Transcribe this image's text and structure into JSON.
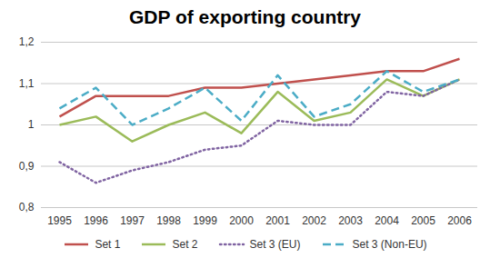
{
  "chart_data": {
    "type": "line",
    "title": "GDP of exporting country",
    "categories": [
      "1995",
      "1996",
      "1997",
      "1998",
      "1999",
      "2000",
      "2001",
      "2002",
      "2003",
      "2004",
      "2005",
      "2006"
    ],
    "series": [
      {
        "name": "Set 1",
        "color": "#C0504D",
        "line_style": "solid",
        "values": [
          1.02,
          1.07,
          1.07,
          1.07,
          1.09,
          1.09,
          1.1,
          1.11,
          1.12,
          1.13,
          1.13,
          1.16
        ]
      },
      {
        "name": "Set 2",
        "color": "#9BBB59",
        "line_style": "solid",
        "values": [
          1.0,
          1.02,
          0.96,
          1.0,
          1.03,
          0.98,
          1.08,
          1.01,
          1.03,
          1.11,
          1.07,
          1.11
        ]
      },
      {
        "name": "Set 3 (EU)",
        "color": "#8064A2",
        "line_style": "dotted",
        "values": [
          0.91,
          0.86,
          0.89,
          0.91,
          0.94,
          0.95,
          1.01,
          1.0,
          1.0,
          1.08,
          1.07,
          1.11
        ]
      },
      {
        "name": "Set 3 (Non-EU)",
        "color": "#4BACC6",
        "line_style": "dashed",
        "values": [
          1.04,
          1.09,
          1.0,
          1.04,
          1.09,
          1.01,
          1.12,
          1.02,
          1.05,
          1.13,
          1.08,
          1.11
        ]
      }
    ],
    "ylim": [
      0.8,
      1.2
    ],
    "yticks": [
      {
        "value": 0.8,
        "label": "0,8"
      },
      {
        "value": 0.9,
        "label": "0,9"
      },
      1,
      {
        "value": 1.1,
        "label": "1,1"
      },
      {
        "value": 1.2,
        "label": "1,2"
      }
    ],
    "grid": true,
    "legend": "bottom"
  }
}
